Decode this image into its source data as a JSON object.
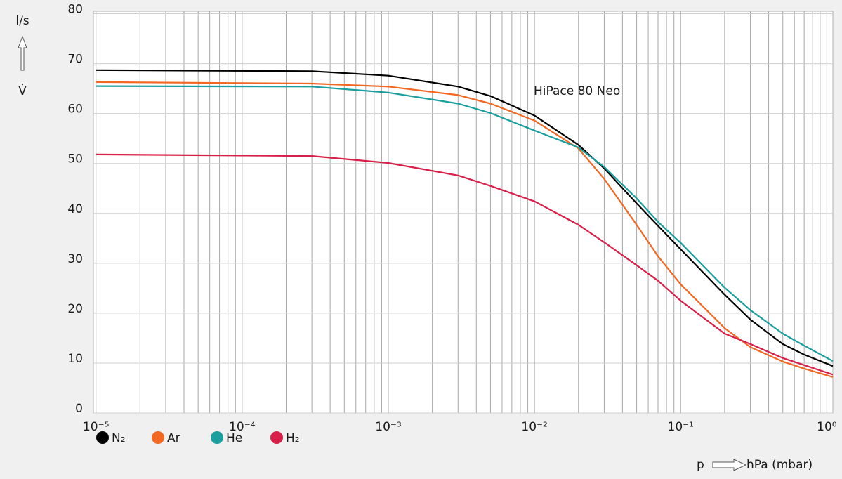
{
  "chart_data": {
    "type": "line",
    "annotation": "HiPace 80 Neo",
    "y_label_unit": "l/s",
    "y_label": "V̇",
    "x_label": "p",
    "x_unit": "hPa (mbar)",
    "log_x": true,
    "grid": true,
    "x": [
      1e-05,
      0.0003,
      0.001,
      0.003,
      0.005,
      0.01,
      0.02,
      0.03,
      0.05,
      0.07,
      0.1,
      0.2,
      0.3,
      0.5,
      0.7,
      1.1
    ],
    "series": [
      {
        "name": "N₂",
        "color": "#000000",
        "values": [
          68.7,
          68.5,
          67.6,
          65.4,
          63.5,
          59.6,
          53.7,
          49,
          42,
          37.5,
          32.8,
          23.7,
          18.7,
          13.8,
          11.7,
          9.4
        ]
      },
      {
        "name": "Ar",
        "color": "#f26722",
        "values": [
          66.3,
          66,
          65.4,
          63.7,
          62,
          58.6,
          53,
          46.9,
          37.7,
          31.4,
          25.8,
          17,
          13.2,
          10.3,
          8.9,
          7.2
        ]
      },
      {
        "name": "He",
        "color": "#1a9e9e",
        "values": [
          65.5,
          65.4,
          64.2,
          62,
          60.1,
          56.6,
          53.2,
          49.3,
          43,
          38.3,
          34.1,
          25.1,
          20.6,
          15.9,
          13.5,
          10.4
        ]
      },
      {
        "name": "H₂",
        "color": "#d81f4a",
        "values": [
          51.8,
          51.5,
          50.1,
          47.6,
          45.5,
          42.4,
          37.7,
          34.2,
          29.6,
          26.5,
          22.5,
          15.9,
          13.8,
          11,
          9.6,
          7.7
        ]
      }
    ],
    "xlim": [
      9.6e-06,
      1.1
    ],
    "xticks": [
      {
        "value": 1e-05,
        "label": "10⁻⁵"
      },
      {
        "value": 0.0001,
        "label": "10⁻⁴"
      },
      {
        "value": 0.001,
        "label": "10⁻³"
      },
      {
        "value": 0.01,
        "label": "10⁻²"
      },
      {
        "value": 0.1,
        "label": "10⁻¹"
      },
      {
        "value": 1,
        "label": "10⁰"
      }
    ],
    "xminor": [
      2e-05,
      3e-05,
      4e-05,
      5e-05,
      6e-05,
      7e-05,
      8e-05,
      9e-05,
      0.0002,
      0.0003,
      0.0004,
      0.0005,
      0.0006,
      0.0007,
      0.0008,
      0.0009,
      0.002,
      0.003,
      0.004,
      0.005,
      0.006,
      0.007,
      0.008,
      0.009,
      0.02,
      0.03,
      0.04,
      0.05,
      0.06,
      0.07,
      0.08,
      0.09,
      0.2,
      0.3,
      0.4,
      0.5,
      0.6,
      0.7,
      0.8,
      0.9
    ],
    "ylim": [
      0,
      80.5
    ],
    "yticks": [
      0,
      10,
      20,
      30,
      40,
      50,
      60,
      70,
      80
    ]
  }
}
